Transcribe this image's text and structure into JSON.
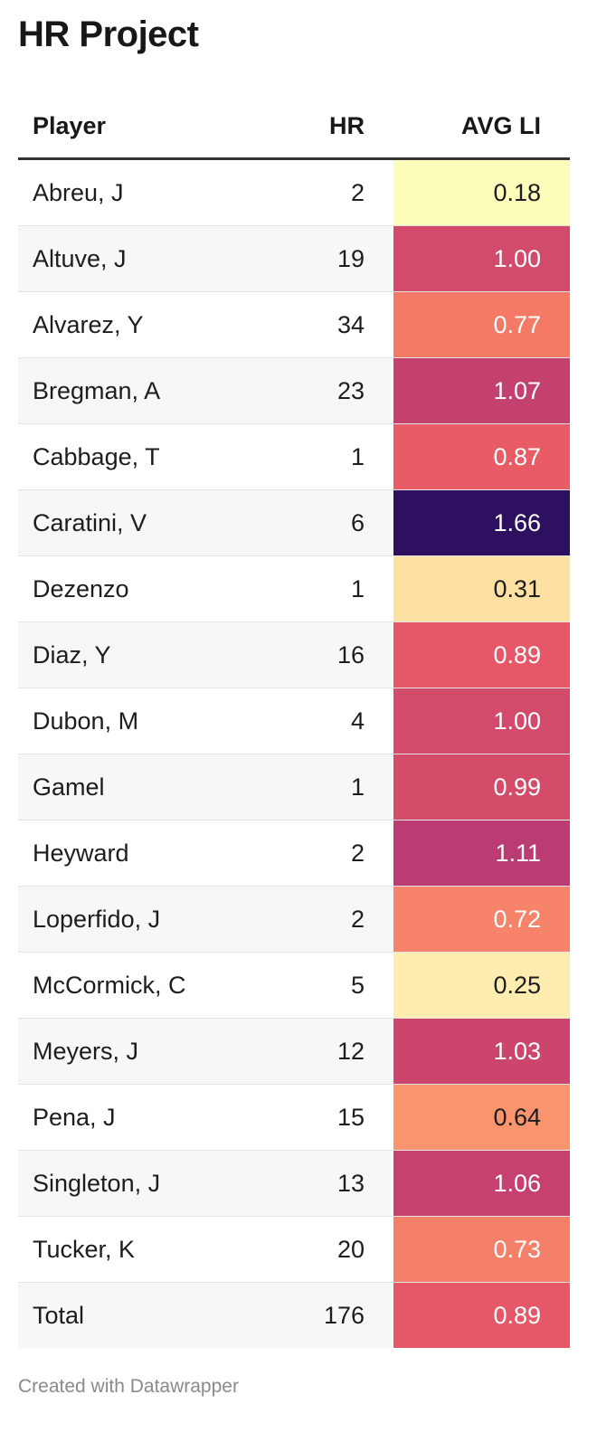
{
  "title": "HR Project",
  "columns": {
    "player": "Player",
    "hr": "HR",
    "avg_li": "AVG LI"
  },
  "rows": [
    {
      "player": "Abreu, J",
      "hr": "2",
      "avg_li": "0.18",
      "bg": "#fcfcbb",
      "fg": "#1d1d1d"
    },
    {
      "player": "Altuve, J",
      "hr": "19",
      "avg_li": "1.00",
      "bg": "#d24b6b",
      "fg": "#ffffff"
    },
    {
      "player": "Alvarez, Y",
      "hr": "34",
      "avg_li": "0.77",
      "bg": "#f47a66",
      "fg": "#ffffff"
    },
    {
      "player": "Bregman, A",
      "hr": "23",
      "avg_li": "1.07",
      "bg": "#c4406f",
      "fg": "#ffffff"
    },
    {
      "player": "Cabbage, T",
      "hr": "1",
      "avg_li": "0.87",
      "bg": "#e95c65",
      "fg": "#ffffff"
    },
    {
      "player": "Caratini, V",
      "hr": "6",
      "avg_li": "1.66",
      "bg": "#2d1160",
      "fg": "#ffffff"
    },
    {
      "player": "Dezenzo",
      "hr": "1",
      "avg_li": "0.31",
      "bg": "#fde0a2",
      "fg": "#1d1d1d"
    },
    {
      "player": "Diaz, Y",
      "hr": "16",
      "avg_li": "0.89",
      "bg": "#e65867",
      "fg": "#ffffff"
    },
    {
      "player": "Dubon, M",
      "hr": "4",
      "avg_li": "1.00",
      "bg": "#d24b6b",
      "fg": "#ffffff"
    },
    {
      "player": "Gamel",
      "hr": "1",
      "avg_li": "0.99",
      "bg": "#d44c6a",
      "fg": "#ffffff"
    },
    {
      "player": "Heyward",
      "hr": "2",
      "avg_li": "1.11",
      "bg": "#bb3c72",
      "fg": "#ffffff"
    },
    {
      "player": "Loperfido, J",
      "hr": "2",
      "avg_li": "0.72",
      "bg": "#f6836a",
      "fg": "#ffffff"
    },
    {
      "player": "McCormick, C",
      "hr": "5",
      "avg_li": "0.25",
      "bg": "#feecb1",
      "fg": "#1d1d1d"
    },
    {
      "player": "Meyers, J",
      "hr": "12",
      "avg_li": "1.03",
      "bg": "#cb456d",
      "fg": "#ffffff"
    },
    {
      "player": "Pena, J",
      "hr": "15",
      "avg_li": "0.64",
      "bg": "#f9946e",
      "fg": "#1d1d1d"
    },
    {
      "player": "Singleton, J",
      "hr": "13",
      "avg_li": "1.06",
      "bg": "#c6416f",
      "fg": "#ffffff"
    },
    {
      "player": "Tucker, K",
      "hr": "20",
      "avg_li": "0.73",
      "bg": "#f5806a",
      "fg": "#ffffff"
    },
    {
      "player": "Total",
      "hr": "176",
      "avg_li": "0.89",
      "bg": "#e65867",
      "fg": "#ffffff"
    }
  ],
  "footer": "Created with Datawrapper"
}
